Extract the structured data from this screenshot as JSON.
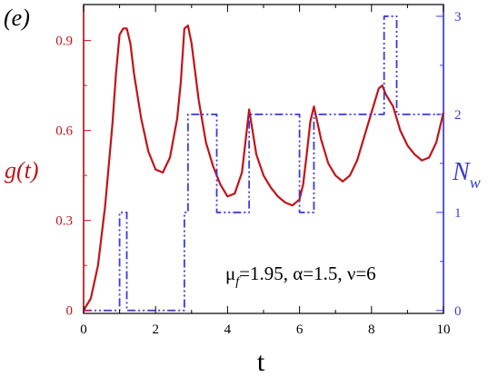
{
  "panel_label": "(e)",
  "annotation": {
    "parts": [
      "μ",
      "f",
      "=1.95, α=1.5, ν=6"
    ]
  },
  "colors": {
    "left_axis": "#c0141a",
    "right_axis": "#3a3ad6",
    "series_g": "#c0141a",
    "series_nw": "#3a3ad6",
    "frame": "#000000"
  },
  "chart_data": {
    "type": "line",
    "title": "",
    "xlabel": "t",
    "xlim": [
      0,
      10
    ],
    "x_ticks": [
      0,
      2,
      4,
      6,
      8,
      10
    ],
    "x_tick_labels": [
      "0",
      "2",
      "4",
      "6",
      "8",
      "10"
    ],
    "left_axis": {
      "label": "g(t)",
      "ylim": [
        -0.01,
        1.02
      ],
      "ticks": [
        0,
        0.3,
        0.6,
        0.9
      ],
      "tick_labels": [
        "0",
        "0.3",
        "0.6",
        "0.9"
      ]
    },
    "right_axis": {
      "label": "N",
      "label_subscript": "w",
      "ylim": [
        -0.03,
        3.12
      ],
      "ticks": [
        0,
        1,
        2,
        3
      ],
      "tick_labels": [
        "0",
        "1",
        "2",
        "3"
      ]
    },
    "grid": false,
    "series": [
      {
        "axis": "left",
        "style": "solid",
        "x": [
          0,
          0.2,
          0.4,
          0.6,
          0.8,
          0.9,
          1.0,
          1.1,
          1.2,
          1.3,
          1.4,
          1.6,
          1.8,
          2.0,
          2.2,
          2.4,
          2.6,
          2.7,
          2.8,
          2.9,
          3.0,
          3.2,
          3.4,
          3.6,
          3.8,
          4.0,
          4.2,
          4.4,
          4.6,
          4.8,
          5.0,
          5.2,
          5.4,
          5.6,
          5.8,
          6.0,
          6.1,
          6.2,
          6.3,
          6.4,
          6.6,
          6.8,
          7.0,
          7.2,
          7.4,
          7.6,
          7.8,
          8.0,
          8.2,
          8.3,
          8.4,
          8.6,
          8.8,
          9.0,
          9.2,
          9.4,
          9.6,
          9.8,
          10.0
        ],
        "y": [
          0.0,
          0.04,
          0.15,
          0.35,
          0.62,
          0.79,
          0.92,
          0.94,
          0.94,
          0.89,
          0.79,
          0.64,
          0.53,
          0.47,
          0.46,
          0.51,
          0.64,
          0.76,
          0.94,
          0.95,
          0.89,
          0.7,
          0.56,
          0.48,
          0.42,
          0.38,
          0.39,
          0.46,
          0.67,
          0.52,
          0.45,
          0.41,
          0.38,
          0.36,
          0.35,
          0.37,
          0.42,
          0.52,
          0.63,
          0.68,
          0.57,
          0.49,
          0.45,
          0.43,
          0.45,
          0.5,
          0.58,
          0.66,
          0.74,
          0.75,
          0.72,
          0.68,
          0.6,
          0.55,
          0.52,
          0.5,
          0.51,
          0.56,
          0.66
        ]
      },
      {
        "axis": "right",
        "style": "dash-dot-dot",
        "x": [
          0,
          1.0,
          1.0,
          1.2,
          1.2,
          2.8,
          2.8,
          2.9,
          2.9,
          3.7,
          3.7,
          4.6,
          4.6,
          6.0,
          6.0,
          6.4,
          6.4,
          8.35,
          8.35,
          8.7,
          8.7,
          10.0
        ],
        "y": [
          0,
          0,
          1,
          1,
          0,
          0,
          1,
          1,
          2,
          2,
          1,
          1,
          2,
          2,
          1,
          1,
          2,
          2,
          3,
          3,
          2,
          2
        ]
      }
    ]
  }
}
